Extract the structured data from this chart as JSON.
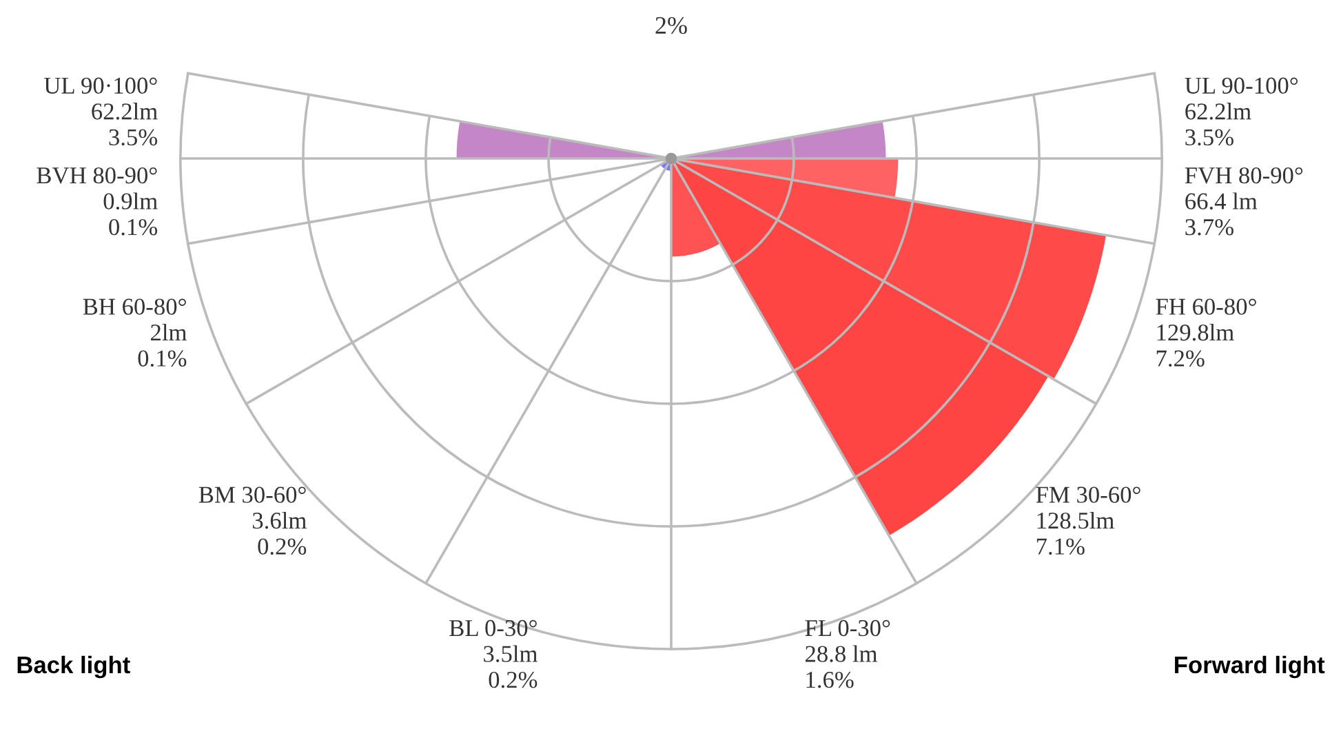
{
  "chart_data": {
    "type": "other",
    "categories": [
      "UL 90·100°",
      "BVH 80-90°",
      "BH 60-80°",
      "BM 30-60°",
      "BL 0-30°",
      "FL 0-30°",
      "FM 30-60°",
      "FH 60-80°",
      "FVH 80-90°",
      "UL 90-100°"
    ],
    "values": [
      3.5,
      0.1,
      0.1,
      0.2,
      0.2,
      1.6,
      7.1,
      7.2,
      3.7,
      3.5
    ],
    "value_labels": [
      "62.2lm\n3.5%",
      "0.9lm\n0.1%",
      "2lm\n0.1%",
      "3.6lm\n0.2%",
      "3.5lm\n0.2%",
      "28.8 lm\n1.6%",
      "128.5lm\n7.1%",
      "129.8lm\n7.2%",
      "66.4 lm\n3.7%",
      "62.2lm\n3.5%"
    ],
    "colors": [
      "#c586c7",
      "#7777ff",
      "#7777ff",
      "#7777ff",
      "#7777ff",
      "#ff5252",
      "#ff4444",
      "#ff4a4a",
      "#ff6262",
      "#c586c7"
    ],
    "annotations": [
      "2%",
      "Back light",
      "Forward light"
    ]
  }
}
